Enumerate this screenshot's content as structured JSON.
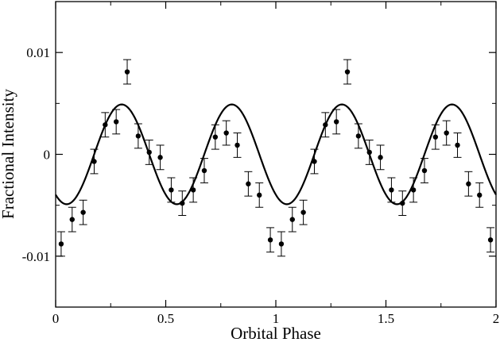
{
  "chart_data": {
    "type": "scatter",
    "title": "",
    "xlabel": "Orbital Phase",
    "ylabel": "Fractional Intensity",
    "xlim": [
      0,
      2
    ],
    "ylim": [
      -0.015,
      0.015
    ],
    "xticks": [
      0,
      0.5,
      1,
      1.5,
      2
    ],
    "xtick_labels": [
      "0",
      "0.5",
      "1",
      "1.5",
      "2"
    ],
    "yticks": [
      -0.01,
      0,
      0.01
    ],
    "ytick_labels": [
      "-0.01",
      "0",
      "0.01"
    ],
    "grid": false,
    "legend": "none",
    "series": [
      {
        "kind": "points_with_error_bars",
        "color": "#000000",
        "x": [
          0.025,
          0.075,
          0.125,
          0.175,
          0.225,
          0.275,
          0.325,
          0.375,
          0.425,
          0.475,
          0.525,
          0.575,
          0.625,
          0.675,
          0.725,
          0.775,
          0.825,
          0.875,
          0.925,
          0.975,
          1.025,
          1.075,
          1.125,
          1.175,
          1.225,
          1.275,
          1.325,
          1.375,
          1.425,
          1.475,
          1.525,
          1.575,
          1.625,
          1.675,
          1.725,
          1.775,
          1.825,
          1.875,
          1.925,
          1.975
        ],
        "y": [
          -0.0088,
          -0.0064,
          -0.0057,
          -0.0007,
          0.0029,
          0.0032,
          0.0081,
          0.0018,
          0.0002,
          -0.0003,
          -0.0035,
          -0.0048,
          -0.0035,
          -0.0016,
          0.0017,
          0.0021,
          0.0009,
          -0.0029,
          -0.004,
          -0.0084,
          -0.0088,
          -0.0064,
          -0.0057,
          -0.0007,
          0.0029,
          0.0032,
          0.0081,
          0.0018,
          0.0002,
          -0.0003,
          -0.0035,
          -0.0048,
          -0.0035,
          -0.0016,
          0.0017,
          0.0021,
          0.0009,
          -0.0029,
          -0.004,
          -0.0084
        ],
        "yerr": 0.0012
      },
      {
        "kind": "model_curve",
        "color": "#000000",
        "function": "A*cos(4*pi*(x - x0))",
        "amplitude": 0.0049,
        "phase_of_max": 0.3
      }
    ]
  }
}
